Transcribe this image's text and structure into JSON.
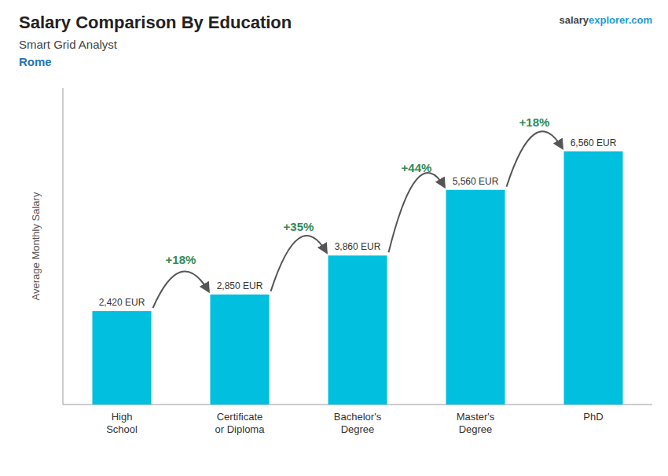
{
  "chart_data": {
    "type": "bar",
    "title": "Salary Comparison By Education",
    "subtitle": [
      "Smart Grid Analyst",
      "Rome"
    ],
    "watermark": [
      "salary",
      "explorer.com"
    ],
    "y_label": "Average Monthly Salary",
    "categories": [
      "High\nSchool",
      "Certificate\nor Diploma",
      "Bachelor's\nDegree",
      "Master's\nDegree",
      "PhD"
    ],
    "values": [
      2420,
      2850,
      3860,
      5560,
      6560
    ],
    "value_labels": [
      "2,420 EUR",
      "2,850 EUR",
      "3,860 EUR",
      "5,560 EUR",
      "6,560 EUR"
    ],
    "annotations": [
      "+18%",
      "+35%",
      "+44%",
      "+18%"
    ],
    "color": "#00bfdf",
    "ylim": [
      0,
      8200
    ],
    "grid": false,
    "data_labels": true,
    "tick_labels": "x"
  }
}
